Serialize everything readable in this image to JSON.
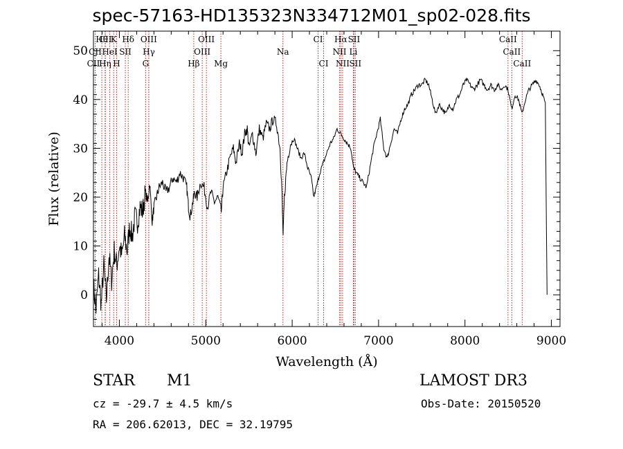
{
  "title": "spec-57163-HD135323N334712M01_sp02-028.fits",
  "info": {
    "class": "STAR",
    "subclass": "M1",
    "survey": "LAMOST DR3",
    "cz": "cz = -29.7 ± 4.5 km/s",
    "obs_date": "Obs-Date: 20150520",
    "coords": "RA = 206.62013, DEC =  32.19795"
  },
  "chart_data": {
    "type": "line",
    "xlabel": "Wavelength (Å)",
    "ylabel": "Flux (relative)",
    "xlim": [
      3700,
      9100
    ],
    "ylim": [
      -6.5,
      54
    ],
    "xticks": [
      4000,
      5000,
      6000,
      7000,
      8000,
      9000
    ],
    "yticks": [
      0,
      10,
      20,
      30,
      40,
      50
    ],
    "grid": false,
    "series": [
      {
        "points": [
          [
            3700,
            2
          ],
          [
            3730,
            -3
          ],
          [
            3760,
            4
          ],
          [
            3790,
            -2
          ],
          [
            3820,
            6
          ],
          [
            3850,
            -1
          ],
          [
            3880,
            8
          ],
          [
            3910,
            3
          ],
          [
            3940,
            9
          ],
          [
            3970,
            6
          ],
          [
            4000,
            10
          ],
          [
            4030,
            8
          ],
          [
            4060,
            12
          ],
          [
            4090,
            9
          ],
          [
            4120,
            14
          ],
          [
            4150,
            12
          ],
          [
            4180,
            16
          ],
          [
            4210,
            15
          ],
          [
            4240,
            18
          ],
          [
            4270,
            17
          ],
          [
            4300,
            21
          ],
          [
            4330,
            19
          ],
          [
            4350,
            23
          ],
          [
            4380,
            15
          ],
          [
            4400,
            18
          ],
          [
            4430,
            20
          ],
          [
            4460,
            22
          ],
          [
            4500,
            23
          ],
          [
            4540,
            21
          ],
          [
            4580,
            22
          ],
          [
            4620,
            24
          ],
          [
            4660,
            23
          ],
          [
            4700,
            25
          ],
          [
            4740,
            24
          ],
          [
            4780,
            22
          ],
          [
            4800,
            18
          ],
          [
            4820,
            16
          ],
          [
            4850,
            19
          ],
          [
            4870,
            21
          ],
          [
            4900,
            20
          ],
          [
            4940,
            23
          ],
          [
            4980,
            22
          ],
          [
            5020,
            18
          ],
          [
            5060,
            21
          ],
          [
            5100,
            19
          ],
          [
            5140,
            20
          ],
          [
            5180,
            17
          ],
          [
            5200,
            22
          ],
          [
            5240,
            25
          ],
          [
            5280,
            28
          ],
          [
            5320,
            30
          ],
          [
            5350,
            27
          ],
          [
            5390,
            31
          ],
          [
            5420,
            29
          ],
          [
            5450,
            33
          ],
          [
            5480,
            34
          ],
          [
            5500,
            30
          ],
          [
            5540,
            33
          ],
          [
            5580,
            29
          ],
          [
            5620,
            34
          ],
          [
            5660,
            32
          ],
          [
            5700,
            35
          ],
          [
            5740,
            34
          ],
          [
            5780,
            36
          ],
          [
            5820,
            35
          ],
          [
            5860,
            30
          ],
          [
            5880,
            22
          ],
          [
            5895,
            12
          ],
          [
            5910,
            20
          ],
          [
            5940,
            27
          ],
          [
            5980,
            31
          ],
          [
            6020,
            32
          ],
          [
            6060,
            30
          ],
          [
            6100,
            28
          ],
          [
            6140,
            29
          ],
          [
            6180,
            26
          ],
          [
            6220,
            24
          ],
          [
            6250,
            20
          ],
          [
            6280,
            22
          ],
          [
            6320,
            25
          ],
          [
            6360,
            27
          ],
          [
            6400,
            29
          ],
          [
            6440,
            31
          ],
          [
            6480,
            32
          ],
          [
            6520,
            34
          ],
          [
            6560,
            33
          ],
          [
            6600,
            32
          ],
          [
            6640,
            31
          ],
          [
            6680,
            30
          ],
          [
            6710,
            26
          ],
          [
            6740,
            25
          ],
          [
            6780,
            24
          ],
          [
            6820,
            23
          ],
          [
            6860,
            22
          ],
          [
            6900,
            26
          ],
          [
            6940,
            30
          ],
          [
            6980,
            33
          ],
          [
            7020,
            36
          ],
          [
            7060,
            30
          ],
          [
            7100,
            28
          ],
          [
            7140,
            31
          ],
          [
            7180,
            34
          ],
          [
            7220,
            33
          ],
          [
            7260,
            36
          ],
          [
            7300,
            38
          ],
          [
            7340,
            39
          ],
          [
            7380,
            41
          ],
          [
            7420,
            42
          ],
          [
            7460,
            43
          ],
          [
            7500,
            43
          ],
          [
            7540,
            44
          ],
          [
            7580,
            43
          ],
          [
            7620,
            40
          ],
          [
            7660,
            37
          ],
          [
            7700,
            39
          ],
          [
            7740,
            38
          ],
          [
            7780,
            37
          ],
          [
            7820,
            39
          ],
          [
            7860,
            38
          ],
          [
            7900,
            40
          ],
          [
            7940,
            41
          ],
          [
            7980,
            43
          ],
          [
            8020,
            44
          ],
          [
            8060,
            43
          ],
          [
            8100,
            42
          ],
          [
            8140,
            43
          ],
          [
            8180,
            44
          ],
          [
            8220,
            43
          ],
          [
            8260,
            42
          ],
          [
            8300,
            43
          ],
          [
            8340,
            42
          ],
          [
            8380,
            43
          ],
          [
            8420,
            42
          ],
          [
            8460,
            43
          ],
          [
            8500,
            42
          ],
          [
            8540,
            38
          ],
          [
            8580,
            41
          ],
          [
            8620,
            40
          ],
          [
            8660,
            37
          ],
          [
            8700,
            40
          ],
          [
            8740,
            42
          ],
          [
            8780,
            43
          ],
          [
            8820,
            44
          ],
          [
            8860,
            43
          ],
          [
            8900,
            41
          ],
          [
            8930,
            39
          ],
          [
            8950,
            0
          ]
        ]
      }
    ],
    "lines": [
      {
        "label": "Hθ",
        "x": 3797,
        "row": 0
      },
      {
        "label": "CII",
        "x": 3838,
        "row": 0
      },
      {
        "label": "K",
        "x": 3934,
        "row": 0
      },
      {
        "label": "Hδ",
        "x": 4102,
        "row": 0
      },
      {
        "label": "OIII",
        "x": 4340,
        "row": 0
      },
      {
        "label": "OIII",
        "x": 5007,
        "row": 0
      },
      {
        "label": "CI",
        "x": 6300,
        "row": 0
      },
      {
        "label": "Hα",
        "x": 6563,
        "row": 0
      },
      {
        "label": "SII",
        "x": 6716,
        "row": 0
      },
      {
        "label": "CaII",
        "x": 8498,
        "row": 0
      },
      {
        "label": "CII",
        "x": 3720,
        "row": 1
      },
      {
        "label": "HeI",
        "x": 3889,
        "row": 1
      },
      {
        "label": "SII",
        "x": 4069,
        "row": 1
      },
      {
        "label": "Hγ",
        "x": 4341,
        "row": 1
      },
      {
        "label": "OIII",
        "x": 4959,
        "row": 1
      },
      {
        "label": "Na",
        "x": 5893,
        "row": 1
      },
      {
        "label": "NII",
        "x": 6548,
        "row": 1
      },
      {
        "label": "Li",
        "x": 6708,
        "row": 1
      },
      {
        "label": "CaII",
        "x": 8542,
        "row": 1
      },
      {
        "label": "CII",
        "x": 3700,
        "row": 2
      },
      {
        "label": "Hη",
        "x": 3835,
        "row": 2
      },
      {
        "label": "H",
        "x": 3968,
        "row": 2
      },
      {
        "label": "G",
        "x": 4304,
        "row": 2
      },
      {
        "label": "Hβ",
        "x": 4861,
        "row": 2
      },
      {
        "label": "Mg",
        "x": 5175,
        "row": 2
      },
      {
        "label": "CI",
        "x": 6364,
        "row": 2
      },
      {
        "label": "NII",
        "x": 6584,
        "row": 2
      },
      {
        "label": "SII",
        "x": 6731,
        "row": 2
      },
      {
        "label": "CaII",
        "x": 8662,
        "row": 2
      }
    ]
  }
}
